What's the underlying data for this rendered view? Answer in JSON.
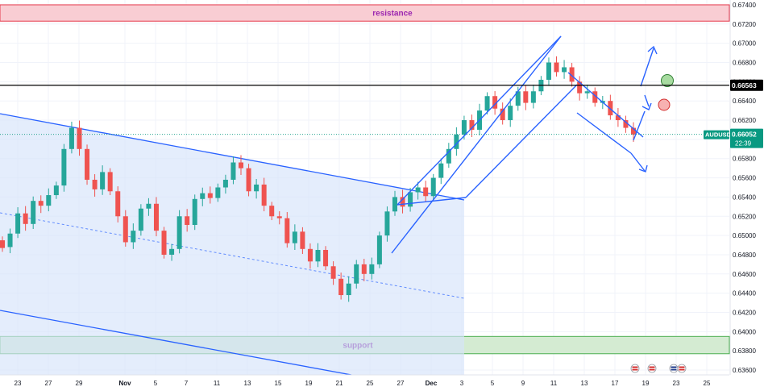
{
  "symbol": "AUDUSD",
  "colors": {
    "up": "#26a69a",
    "down": "#ef5350",
    "drawing": "#2962ff",
    "resistance_fill": "#f9cdd3",
    "resistance_border": "#e5394c",
    "resistance_text": "#9c27b0",
    "support_fill": "#d4ebd2",
    "support_border": "#4caf50",
    "support_text": "#7b1fa2",
    "level_line": "#000000",
    "price_tag": "#089981",
    "channel_fill": "#d6e4fb"
  },
  "chart_data": {
    "type": "candlestick",
    "y_range": [
      0.6355,
      0.6745
    ],
    "x_ticks": [
      {
        "label": "23",
        "i": 0
      },
      {
        "label": "27",
        "i": 2
      },
      {
        "label": "29",
        "i": 4
      },
      {
        "label": "Nov",
        "i": 7
      },
      {
        "label": "5",
        "i": 9
      },
      {
        "label": "7",
        "i": 11
      },
      {
        "label": "11",
        "i": 13
      },
      {
        "label": "13",
        "i": 15
      },
      {
        "label": "15",
        "i": 17
      },
      {
        "label": "19",
        "i": 19
      },
      {
        "label": "21",
        "i": 21
      },
      {
        "label": "25",
        "i": 23
      },
      {
        "label": "27",
        "i": 25
      },
      {
        "label": "Dec",
        "i": 27
      },
      {
        "label": "3",
        "i": 29
      },
      {
        "label": "5",
        "i": 31
      },
      {
        "label": "9",
        "i": 33
      },
      {
        "label": "11",
        "i": 35
      },
      {
        "label": "13",
        "i": 37
      },
      {
        "label": "17",
        "i": 39
      },
      {
        "label": "19",
        "i": 41
      },
      {
        "label": "23",
        "i": 43
      },
      {
        "label": "25",
        "i": 45
      }
    ],
    "y_ticks": [
      "0.67400",
      "0.67200",
      "0.67000",
      "0.66800",
      "0.66600",
      "0.66400",
      "0.66200",
      "0.66000",
      "0.65800",
      "0.65600",
      "0.65400",
      "0.65200",
      "0.65000",
      "0.64800",
      "0.64600",
      "0.64400",
      "0.64200",
      "0.64000",
      "0.63800",
      "0.63600"
    ],
    "series": [
      {
        "name": "AUDUSD",
        "points": [
          [
            0.6495,
            0.6487
          ],
          [
            0.6488,
            0.6502
          ],
          [
            0.6502,
            0.6523
          ],
          [
            0.6523,
            0.6512
          ],
          [
            0.6512,
            0.6536
          ],
          [
            0.6536,
            0.6531
          ],
          [
            0.6531,
            0.6542
          ],
          [
            0.6542,
            0.6552
          ],
          [
            0.6552,
            0.659
          ],
          [
            0.659,
            0.6612
          ],
          [
            0.6612,
            0.659
          ],
          [
            0.659,
            0.6558
          ],
          [
            0.6558,
            0.6548
          ],
          [
            0.6548,
            0.6566
          ],
          [
            0.6566,
            0.6546
          ],
          [
            0.6546,
            0.652
          ],
          [
            0.652,
            0.6493
          ],
          [
            0.6493,
            0.6505
          ],
          [
            0.6505,
            0.6528
          ],
          [
            0.6528,
            0.6533
          ],
          [
            0.6533,
            0.6505
          ],
          [
            0.6505,
            0.648
          ],
          [
            0.648,
            0.6486
          ],
          [
            0.6486,
            0.652
          ],
          [
            0.652,
            0.6511
          ],
          [
            0.6511,
            0.6538
          ],
          [
            0.6538,
            0.6544
          ],
          [
            0.6544,
            0.6539
          ],
          [
            0.6539,
            0.655
          ],
          [
            0.655,
            0.6558
          ],
          [
            0.6558,
            0.6576
          ],
          [
            0.6576,
            0.657
          ],
          [
            0.657,
            0.6546
          ],
          [
            0.6546,
            0.6553
          ],
          [
            0.6553,
            0.6531
          ],
          [
            0.6531,
            0.652
          ],
          [
            0.652,
            0.6518
          ],
          [
            0.6518,
            0.6492
          ],
          [
            0.6492,
            0.6504
          ],
          [
            0.6504,
            0.6486
          ],
          [
            0.6486,
            0.6473
          ],
          [
            0.6473,
            0.6485
          ],
          [
            0.6485,
            0.6468
          ],
          [
            0.6468,
            0.6455
          ],
          [
            0.6455,
            0.6438
          ],
          [
            0.6438,
            0.645
          ],
          [
            0.645,
            0.647
          ],
          [
            0.647,
            0.646
          ],
          [
            0.646,
            0.647
          ],
          [
            0.647,
            0.65
          ],
          [
            0.65,
            0.6525
          ],
          [
            0.6525,
            0.654
          ],
          [
            0.654,
            0.653
          ],
          [
            0.653,
            0.6545
          ],
          [
            0.6545,
            0.655
          ],
          [
            0.655,
            0.6541
          ],
          [
            0.6541,
            0.656
          ],
          [
            0.656,
            0.6575
          ],
          [
            0.6575,
            0.659
          ],
          [
            0.659,
            0.6605
          ],
          [
            0.6605,
            0.662
          ],
          [
            0.662,
            0.661
          ],
          [
            0.661,
            0.663
          ],
          [
            0.663,
            0.6645
          ],
          [
            0.6645,
            0.6632
          ],
          [
            0.6632,
            0.662
          ],
          [
            0.662,
            0.6635
          ],
          [
            0.6635,
            0.665
          ],
          [
            0.665,
            0.6638
          ],
          [
            0.6638,
            0.665
          ],
          [
            0.665,
            0.6662
          ],
          [
            0.6662,
            0.668
          ],
          [
            0.668,
            0.667
          ],
          [
            0.667,
            0.6675
          ],
          [
            0.6675,
            0.666
          ],
          [
            0.666,
            0.6648
          ],
          [
            0.6648,
            0.665
          ],
          [
            0.665,
            0.6638
          ],
          [
            0.6638,
            0.664
          ],
          [
            0.664,
            0.6625
          ],
          [
            0.6625,
            0.662
          ],
          [
            0.662,
            0.6612
          ],
          [
            0.6612,
            0.6605
          ]
        ]
      }
    ]
  },
  "drawings": {
    "resistance_label": "resistance",
    "support_label": "support",
    "resistance_zone": [
      0.6723,
      0.674
    ],
    "support_zone": [
      0.6377,
      0.6395
    ],
    "level_price": "0.66563",
    "current_price": "0.66052",
    "countdown": "22:39",
    "current_value": 0.66052,
    "level_value": 0.66563
  }
}
